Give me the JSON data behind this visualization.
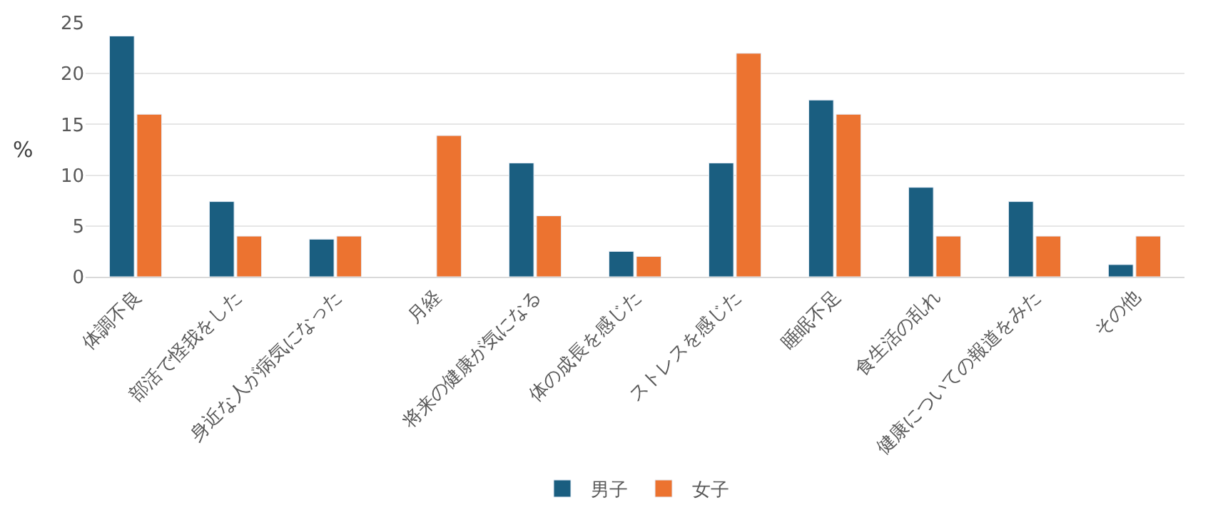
{
  "chart_data": {
    "type": "bar",
    "ylabel": "%",
    "categories": [
      "体調不良",
      "部活で怪我をした",
      "身近な人が病気になった",
      "月経",
      "将来の健康が気になる",
      "体の成長を感じた",
      "ストレスを感じた",
      "睡眠不足",
      "食生活の乱れ",
      "健康についての報道をみた",
      "その他"
    ],
    "series": [
      {
        "name": "男子",
        "color": "#1a5e80",
        "values": [
          23.7,
          7.4,
          3.7,
          null,
          11.2,
          2.5,
          11.2,
          17.4,
          8.8,
          7.4,
          1.2
        ]
      },
      {
        "name": "女子",
        "color": "#ec7330",
        "values": [
          16.0,
          4.0,
          4.0,
          13.9,
          6.0,
          2.0,
          22.0,
          16.0,
          4.0,
          4.0,
          4.0
        ]
      }
    ],
    "ylim": [
      0,
      25
    ],
    "yticks": [
      0,
      5,
      10,
      15,
      20,
      25
    ],
    "grid": "y",
    "legend": "bottom"
  }
}
